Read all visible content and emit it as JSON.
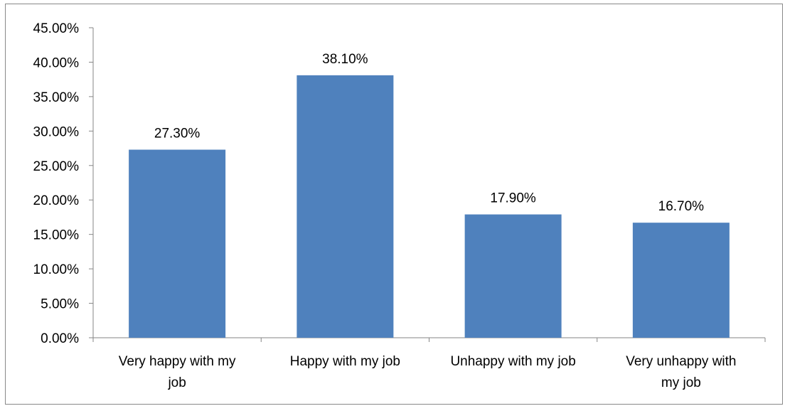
{
  "chart_data": {
    "type": "bar",
    "categories": [
      [
        "Very happy with my",
        "job"
      ],
      [
        "Happy with my job"
      ],
      [
        "Unhappy with my job"
      ],
      [
        "Very unhappy with",
        "my job"
      ]
    ],
    "values": [
      27.3,
      38.1,
      17.9,
      16.7
    ],
    "data_labels": [
      "27.30%",
      "38.10%",
      "17.90%",
      "16.70%"
    ],
    "yticks": [
      "0.00%",
      "5.00%",
      "10.00%",
      "15.00%",
      "20.00%",
      "25.00%",
      "30.00%",
      "35.00%",
      "40.00%",
      "45.00%"
    ],
    "ylim": [
      0,
      45
    ],
    "grid": false,
    "legend": "none",
    "colors": {
      "bar": "#4F81BD",
      "axis": "#868686"
    }
  }
}
